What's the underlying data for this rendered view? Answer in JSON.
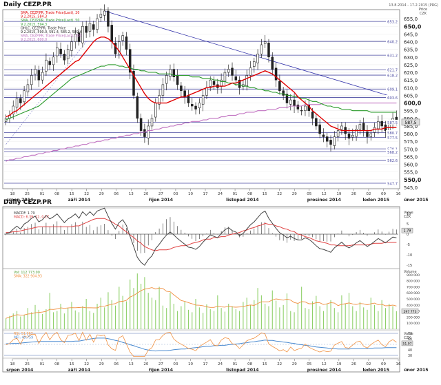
{
  "header": {
    "title": "Daily CEZP.PR",
    "date_range": "13.8.2014 - 17.2.2015 (PRG)",
    "units": [
      "Price",
      "CZK"
    ]
  },
  "colors": {
    "candle": "#222222",
    "sma20": "#e00000",
    "sma50": "#2a9a2a",
    "sma200": "#c070c0",
    "trend": "#3333aa",
    "level": "#4a4aa0",
    "volume": "#8fd06a",
    "rsi": "#f09040",
    "macd": "#444444",
    "signal": "#e04040",
    "mfi": "#4a8ad0"
  },
  "legend": [
    {
      "text": "SMA, CEZP.PR, Trade Price(Last), 20",
      "color": "#e00000"
    },
    {
      "text": "9.2.2015, 584.3",
      "color": "#e00000"
    },
    {
      "text": "SMA, CEZP.PR, Trade Price(Last), 50",
      "color": "#2a9a2a"
    },
    {
      "text": "9.2.2015, 594.3",
      "color": "#2a9a2a"
    },
    {
      "text": "OHLC, CEZP.PR, Trade Price",
      "color": "#222222"
    },
    {
      "text": "9.2.2015, 590.0, 591.4, 585.2, 589.4",
      "color": "#222222"
    },
    {
      "text": "SMA, CEZP.PR, Trade Price(Last), 200",
      "color": "#c070c0"
    },
    {
      "text": "9.2.2015, 600.0",
      "color": "#c070c0"
    }
  ],
  "level_labels": [
    "653.2",
    "640.2",
    "631.2",
    "621.7",
    "618.2",
    "609.1",
    "603.6",
    "587.5",
    "580.7",
    "577.5",
    "570.1",
    "568.2",
    "562.6",
    "547.7"
  ],
  "price_ticks": [
    "655,0",
    "650,0",
    "645,0",
    "640,0",
    "635,0",
    "630,0",
    "625,0",
    "620,0",
    "615,0",
    "610,0",
    "605,0",
    "600,0",
    "595,0",
    "590,0",
    "585,0",
    "580,0",
    "575,0",
    "570,0",
    "565,0",
    "560,0",
    "555,0",
    "550,0",
    "545,0"
  ],
  "bold_price_ticks": [
    "650,0",
    "600,0",
    "550,0"
  ],
  "current_price_badge": "587,5",
  "x_day_ticks": [
    "18",
    "25",
    "01",
    "08",
    "15",
    "22",
    "29",
    "06",
    "13",
    "20",
    "27",
    "03",
    "10",
    "17",
    "24",
    "01",
    "08",
    "15",
    "22",
    "29",
    "05",
    "12",
    "19",
    "26",
    "02",
    "09",
    "16"
  ],
  "x_month_labels": [
    "srpen 2014",
    "září 2014",
    "říjen 2014",
    "listopad 2014",
    "prosinec 2014",
    "leden 2015",
    "únor 2015"
  ],
  "lower": {
    "title": "Daily CEZP.PR",
    "macd_legend": [
      "MACDF: 1.79",
      "MACD: 6.39, 12, 0.17"
    ],
    "macd_axis": [
      "Value",
      "CZK"
    ],
    "macd_ticks": [
      "10",
      "5",
      "0",
      "-5",
      "-10",
      "-15"
    ],
    "macd_badge": "1.79",
    "volume_legend": [
      "Vol: 112 773.00",
      "SMA: 322 904.93"
    ],
    "volume_axis": [
      "Volume"
    ],
    "volume_ticks": [
      "900 000",
      "800 000",
      "700 000",
      "600 000",
      "500 000",
      "400 000",
      "300 000",
      "200 000",
      "100 000"
    ],
    "volume_badge": "297 773",
    "rsi_legend": [
      "RSI: 51.967",
      "MFI: 49.759"
    ],
    "rsi_axis": [
      "Value",
      "CZK"
    ],
    "rsi_ticks": [
      "70",
      "60",
      "50",
      "40",
      "30"
    ],
    "rsi_badge": "51.97"
  },
  "chart_data": {
    "type": "candlestick",
    "title": "Daily CEZP.PR",
    "ylabel": "Price CZK",
    "ylim": [
      545,
      660
    ],
    "close": [
      590,
      592,
      598,
      603,
      600,
      608,
      612,
      618,
      622,
      615,
      620,
      628,
      625,
      630,
      636,
      632,
      628,
      635,
      640,
      645,
      640,
      650,
      646,
      652,
      648,
      655,
      658,
      660,
      650,
      640,
      632,
      640,
      644,
      635,
      620,
      605,
      590,
      582,
      578,
      585,
      590,
      600,
      605,
      612,
      618,
      622,
      617,
      612,
      608,
      604,
      600,
      598,
      596,
      600,
      605,
      610,
      615,
      612,
      610,
      615,
      620,
      622,
      618,
      615,
      610,
      612,
      618,
      623,
      627,
      632,
      638,
      640,
      630,
      622,
      615,
      608,
      605,
      600,
      602,
      598,
      596,
      595,
      598,
      595,
      590,
      585,
      580,
      578,
      575,
      573,
      578,
      582,
      585,
      580,
      577,
      579,
      583,
      586,
      582,
      578,
      580,
      584,
      588,
      585,
      582,
      586,
      590,
      589
    ],
    "sma20": [
      591,
      592,
      594,
      595,
      597,
      599,
      601,
      603,
      605,
      607,
      609,
      611,
      613,
      615,
      617,
      619,
      621,
      623,
      625,
      627,
      628,
      631,
      634,
      637,
      640,
      642,
      643,
      643,
      642,
      640,
      637,
      634,
      630,
      626,
      622,
      618,
      614,
      610,
      606,
      603,
      601,
      600,
      600,
      600,
      600,
      601,
      602,
      603,
      604,
      604,
      605,
      606,
      607,
      608,
      609,
      610,
      610,
      611,
      611,
      611,
      611,
      612,
      613,
      613,
      614,
      615,
      616,
      617,
      618,
      619,
      620,
      621,
      620,
      619,
      617,
      615,
      613,
      611,
      609,
      607,
      604,
      602,
      600,
      598,
      595,
      593,
      591,
      589,
      587,
      585,
      584,
      583,
      582,
      582,
      582,
      582,
      582,
      582,
      582,
      582,
      582,
      583,
      583,
      583,
      584,
      584,
      584,
      584
    ],
    "sma50": [
      589,
      590,
      591,
      592,
      593,
      594,
      595,
      596,
      597,
      598,
      600,
      602,
      604,
      606,
      608,
      610,
      612,
      614,
      616,
      617,
      618,
      619,
      620,
      621,
      622,
      623,
      624,
      624,
      625,
      625,
      625,
      624,
      624,
      623,
      623,
      622,
      622,
      621,
      621,
      620,
      620,
      620,
      619,
      619,
      619,
      619,
      618,
      618,
      618,
      618,
      618,
      617,
      617,
      617,
      616,
      616,
      616,
      615,
      615,
      614,
      614,
      613,
      613,
      612,
      612,
      611,
      611,
      610,
      610,
      609,
      609,
      608,
      608,
      607,
      607,
      606,
      606,
      605,
      605,
      604,
      604,
      603,
      603,
      602,
      601,
      601,
      600,
      599,
      598,
      598,
      597,
      597,
      596,
      596,
      596,
      595,
      595,
      595,
      595,
      595,
      594,
      594,
      594,
      594,
      594,
      594,
      594,
      594
    ],
    "sma200": [
      562,
      563,
      563,
      564,
      564,
      565,
      565,
      566,
      566,
      567,
      567,
      568,
      568,
      569,
      569,
      570,
      570,
      571,
      571,
      572,
      572,
      573,
      573,
      574,
      574,
      575,
      575,
      576,
      576,
      577,
      577,
      578,
      578,
      579,
      579,
      580,
      580,
      581,
      581,
      582,
      582,
      583,
      583,
      584,
      584,
      585,
      585,
      586,
      586,
      587,
      587,
      588,
      588,
      588,
      589,
      589,
      590,
      590,
      590,
      591,
      591,
      592,
      592,
      592,
      593,
      593,
      594,
      594,
      594,
      595,
      595,
      595,
      596,
      596,
      596,
      597,
      597,
      597,
      598,
      598,
      598,
      598,
      599,
      599,
      599,
      599,
      599,
      600,
      600,
      600,
      600,
      600,
      600,
      600,
      600,
      600,
      600,
      600,
      600,
      600,
      600,
      600,
      600,
      600,
      600,
      600,
      600,
      600
    ],
    "volume": [
      180000,
      220000,
      260000,
      300000,
      210000,
      240000,
      350000,
      280000,
      400000,
      320000,
      250000,
      330000,
      600000,
      280000,
      300000,
      420000,
      260000,
      350000,
      450000,
      310000,
      280000,
      380000,
      500000,
      300000,
      270000,
      420000,
      520000,
      360000,
      610000,
      480000,
      390000,
      700000,
      550000,
      460000,
      820000,
      680000,
      920000,
      750000,
      860000,
      600000,
      520000,
      480000,
      700000,
      390000,
      350000,
      600000,
      420000,
      300000,
      380000,
      450000,
      320000,
      280000,
      500000,
      360000,
      270000,
      410000,
      330000,
      300000,
      560000,
      350000,
      290000,
      420000,
      380000,
      330000,
      300000,
      450000,
      520000,
      400000,
      480000,
      680000,
      560000,
      420000,
      380000,
      640000,
      470000,
      360000,
      400000,
      590000,
      300000,
      280000,
      420000,
      700000,
      350000,
      330000,
      460000,
      550000,
      380000,
      300000,
      420000,
      480000,
      350000,
      280000,
      560000,
      420000,
      600000,
      380000,
      300000,
      450000,
      360000,
      320000,
      520000,
      400000,
      300000,
      480000,
      350000,
      420000,
      380000,
      297773
    ],
    "volume_sma": 322904.93,
    "macd_last": 1.79,
    "rsi_last": 51.967,
    "mfi_last": 49.759
  }
}
